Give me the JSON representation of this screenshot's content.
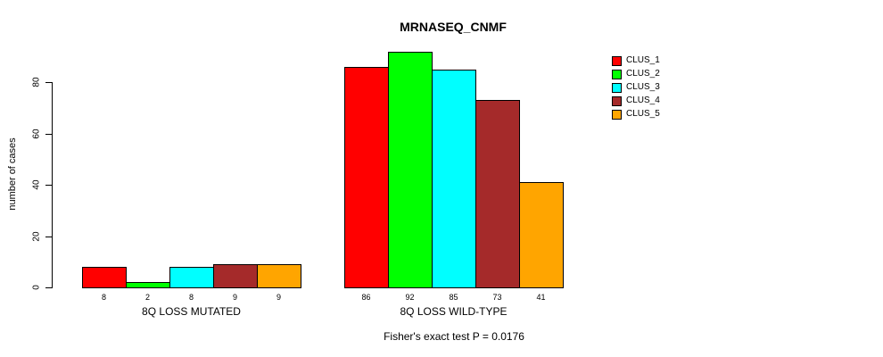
{
  "chart_data": {
    "type": "bar",
    "title": "MRNASEQ_CNMF",
    "xlabel": "",
    "ylabel": "number of cases",
    "ylim": [
      0,
      92
    ],
    "yticks": [
      0,
      20,
      40,
      60,
      80
    ],
    "grid": false,
    "legend_position": "right",
    "groups": [
      {
        "label": "8Q LOSS MUTATED",
        "values": [
          8,
          2,
          8,
          9,
          9
        ],
        "value_labels": [
          "8",
          "2",
          "8",
          "9",
          "9"
        ]
      },
      {
        "label": "8Q LOSS WILD-TYPE",
        "values": [
          86,
          92,
          85,
          73,
          41
        ],
        "value_labels": [
          "86",
          "92",
          "85",
          "73",
          "41"
        ]
      }
    ],
    "series": [
      {
        "name": "CLUS_1",
        "color": "#FF0000"
      },
      {
        "name": "CLUS_2",
        "color": "#00FF00"
      },
      {
        "name": "CLUS_3",
        "color": "#00FFFF"
      },
      {
        "name": "CLUS_4",
        "color": "#A52A2A"
      },
      {
        "name": "CLUS_5",
        "color": "#FFA500"
      }
    ],
    "annotation": "Fisher's exact test P = 0.0176"
  },
  "colors": {
    "axis": "#000000",
    "text": "#000000",
    "background": "#FFFFFF"
  }
}
